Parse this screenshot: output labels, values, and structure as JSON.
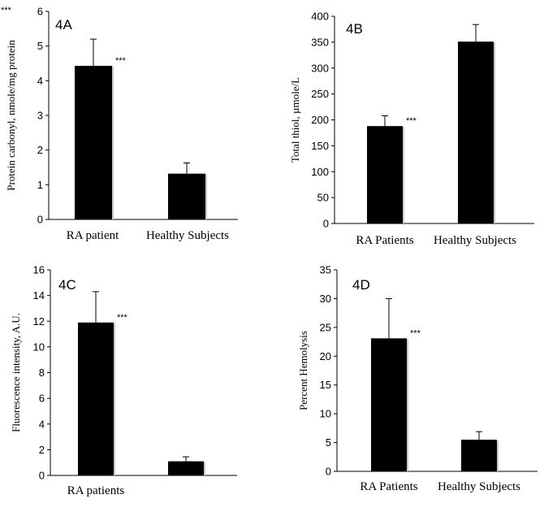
{
  "corner_mark": "***",
  "chart_data": [
    {
      "type": "bar",
      "panel_label": "4A",
      "ylabel": "Protein carbonyl, nmole/mg protein",
      "categories": [
        "RA patient",
        "Healthy Subjects"
      ],
      "values": [
        4.43,
        1.32
      ],
      "errors": [
        0.77,
        0.31
      ],
      "significance": [
        "***",
        ""
      ],
      "ylim": [
        0,
        6
      ],
      "yticks": [
        "0",
        "1",
        "2",
        "3",
        "4",
        "5",
        "6"
      ],
      "grid": false
    },
    {
      "type": "bar",
      "panel_label": "4B",
      "ylabel": "Total thiol, µmole/L",
      "categories": [
        "RA Patients",
        "Healthy Subjects"
      ],
      "values": [
        188,
        351
      ],
      "errors": [
        20,
        33
      ],
      "significance": [
        "***",
        ""
      ],
      "ylim": [
        0,
        400
      ],
      "yticks": [
        "0",
        "50",
        "100",
        "150",
        "200",
        "250",
        "300",
        "350",
        "400"
      ],
      "grid": false
    },
    {
      "type": "bar",
      "panel_label": "4C",
      "ylabel": "Fluorescence intensity, A.U.",
      "categories": [
        "RA patients",
        ""
      ],
      "values": [
        11.9,
        1.1
      ],
      "errors": [
        2.4,
        0.35
      ],
      "significance": [
        "***",
        ""
      ],
      "ylim": [
        0,
        16
      ],
      "yticks": [
        "0",
        "2",
        "4",
        "6",
        "8",
        "10",
        "12",
        "14",
        "16"
      ],
      "grid": false
    },
    {
      "type": "bar",
      "panel_label": "4D",
      "ylabel": "Percent Hemolysis",
      "categories": [
        "RA Patients",
        "Healthy Subjects"
      ],
      "values": [
        23.1,
        5.5
      ],
      "errors": [
        6.9,
        1.4
      ],
      "significance": [
        "***",
        ""
      ],
      "ylim": [
        0,
        35
      ],
      "yticks": [
        "0",
        "5",
        "10",
        "15",
        "20",
        "25",
        "30",
        "35"
      ],
      "grid": false
    }
  ]
}
